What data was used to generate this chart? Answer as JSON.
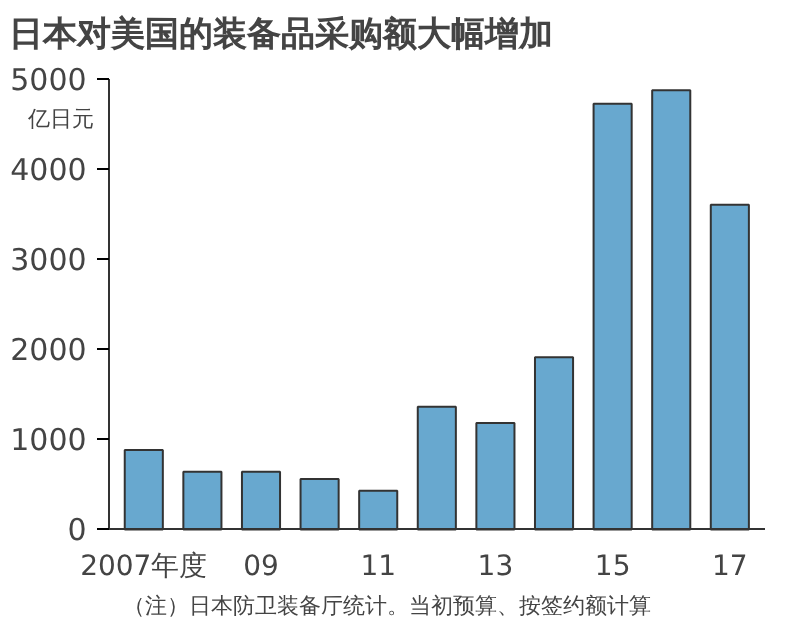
{
  "chart_data": {
    "type": "bar",
    "title": "日本对美国的装备品采购额大幅增加",
    "ylabel": "亿日元",
    "categories": [
      "2007年度",
      null,
      "09",
      null,
      "11",
      null,
      "13",
      null,
      "15",
      null,
      "17"
    ],
    "values": [
      880,
      640,
      640,
      560,
      430,
      1360,
      1180,
      1910,
      4720,
      4870,
      3600
    ],
    "color": "#68a8cf",
    "ylim": [
      0,
      5000
    ],
    "yticks": [
      0,
      1000,
      2000,
      3000,
      4000,
      5000
    ],
    "grid": false,
    "annotations": [
      "（注）日本防卫装备厅统计。当初预算、按签约额计算"
    ]
  }
}
